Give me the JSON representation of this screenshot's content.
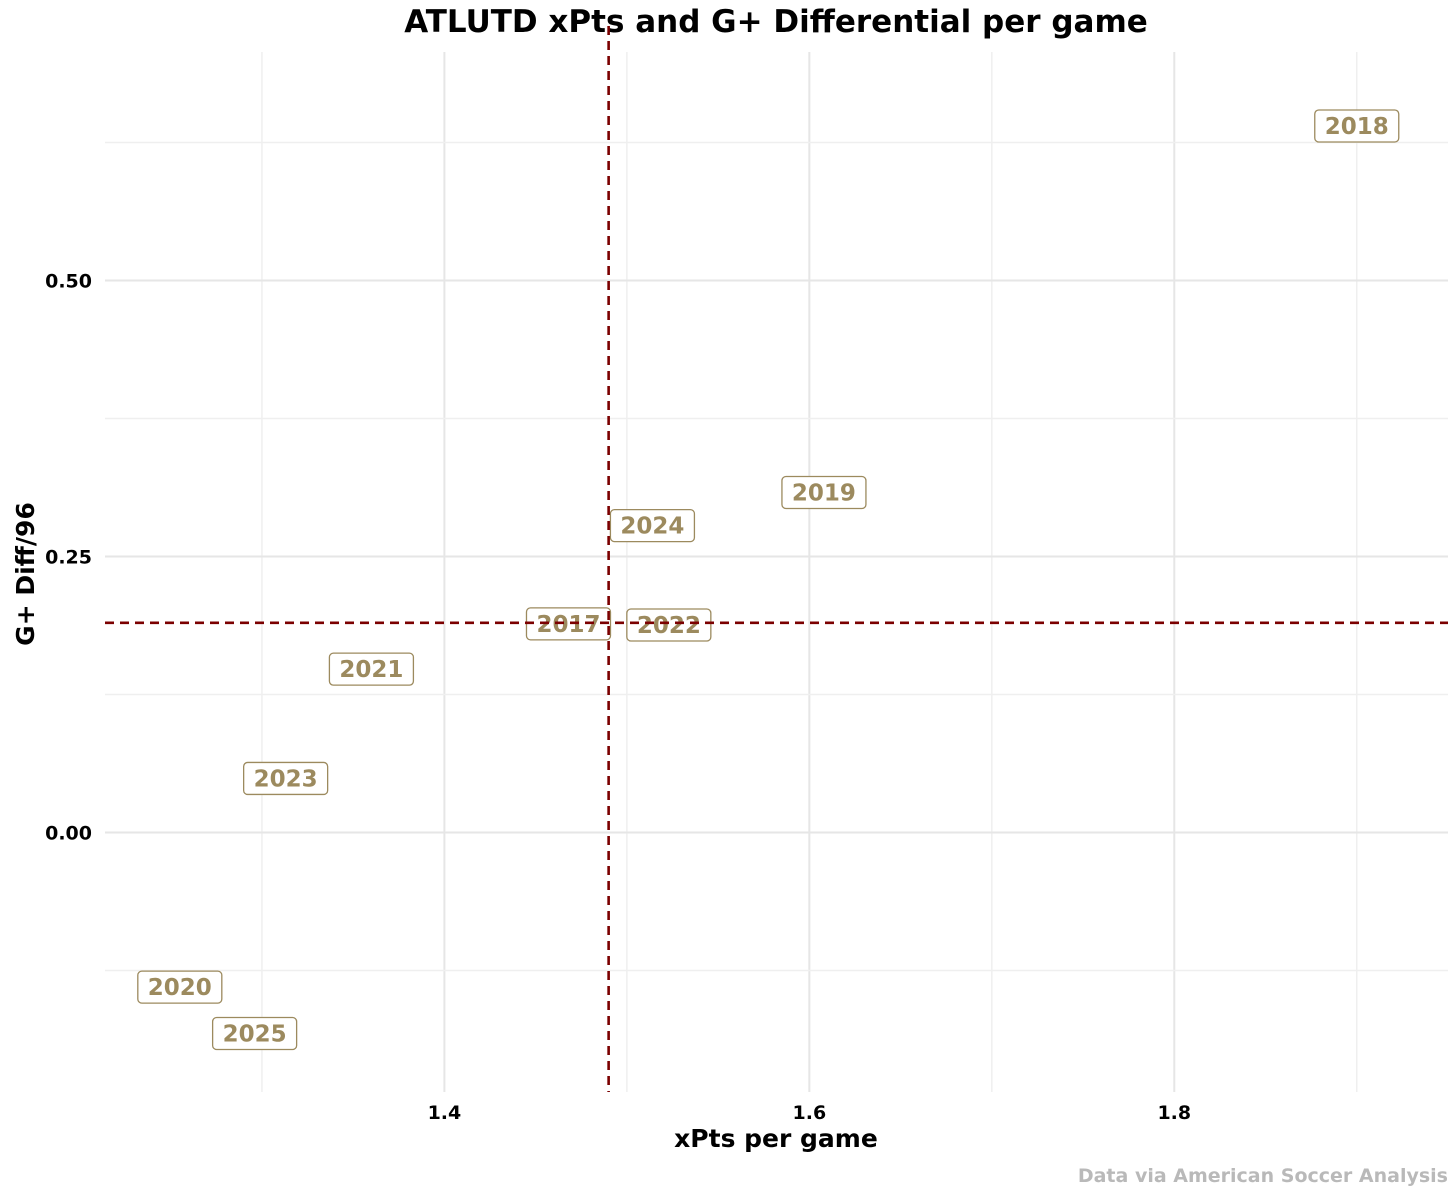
{
  "chart_data": {
    "type": "scatter",
    "title": "ATLUTD xPts and G+ Differential per game",
    "xlabel": "xPts per game",
    "ylabel": "G+ Diff/96",
    "caption": "Data via American Soccer Analysis",
    "xlim": [
      1.214,
      1.95
    ],
    "ylim": [
      -0.235,
      0.707
    ],
    "x_ticks": [
      1.4,
      1.6,
      1.8
    ],
    "x_tick_labels": [
      "1.4",
      "1.6",
      "1.8"
    ],
    "y_ticks": [
      0.0,
      0.25,
      0.5
    ],
    "y_tick_labels": [
      "0.00",
      "0.25",
      "0.50"
    ],
    "grid": true,
    "reference_lines": {
      "x_mean": 1.49,
      "y_mean": 0.19,
      "color": "#7b0000",
      "style": "dashed"
    },
    "label_color": "#9c8a5e",
    "points": [
      {
        "label": "2018",
        "x": 1.9,
        "y": 0.64
      },
      {
        "label": "2019",
        "x": 1.608,
        "y": 0.308
      },
      {
        "label": "2024",
        "x": 1.514,
        "y": 0.278
      },
      {
        "label": "2017",
        "x": 1.468,
        "y": 0.189
      },
      {
        "label": "2022",
        "x": 1.523,
        "y": 0.188
      },
      {
        "label": "2021",
        "x": 1.36,
        "y": 0.148
      },
      {
        "label": "2023",
        "x": 1.313,
        "y": 0.049
      },
      {
        "label": "2020",
        "x": 1.255,
        "y": -0.14
      },
      {
        "label": "2025",
        "x": 1.296,
        "y": -0.182
      }
    ]
  }
}
